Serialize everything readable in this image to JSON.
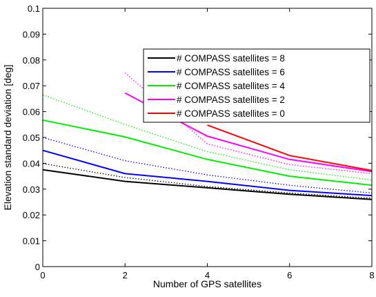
{
  "chart_data": {
    "type": "line",
    "title": "",
    "xlabel": "Number of GPS satellites",
    "ylabel": "Elevation standard deviation [deg]",
    "xlim": [
      0,
      8
    ],
    "ylim": [
      0,
      0.1
    ],
    "xticks": [
      "0",
      "2",
      "4",
      "6",
      "8"
    ],
    "yticks": [
      "0",
      "0.01",
      "0.02",
      "0.03",
      "0.04",
      "0.05",
      "0.06",
      "0.07",
      "0.08",
      "0.09",
      "0.1"
    ],
    "grid": false,
    "legend_position": "top-right",
    "series": [
      {
        "name": "# COMPASS satellites = 8",
        "color": "#000000",
        "solid": {
          "x": [
            0,
            2,
            4,
            6,
            8
          ],
          "y": [
            0.0375,
            0.033,
            0.0305,
            0.028,
            0.026
          ]
        },
        "dotted": {
          "x": [
            0,
            2,
            4,
            6,
            8
          ],
          "y": [
            0.0399,
            0.0345,
            0.031,
            0.0285,
            0.0265
          ]
        }
      },
      {
        "name": "# COMPASS satellites = 6",
        "color": "#0000ff",
        "solid": {
          "x": [
            0,
            2,
            4,
            6,
            8
          ],
          "y": [
            0.045,
            0.036,
            0.033,
            0.0295,
            0.0275
          ]
        },
        "dotted": {
          "x": [
            0,
            2,
            4,
            6,
            8
          ],
          "y": [
            0.05,
            0.041,
            0.0355,
            0.0315,
            0.0285
          ]
        }
      },
      {
        "name": "# COMPASS satellites = 4",
        "color": "#00ee00",
        "solid": {
          "x": [
            0,
            2,
            4,
            6,
            8
          ],
          "y": [
            0.0567,
            0.0502,
            0.0415,
            0.035,
            0.0315
          ]
        },
        "dotted": {
          "x": [
            0,
            2,
            4,
            6,
            8
          ],
          "y": [
            0.0665,
            0.055,
            0.0445,
            0.0375,
            0.0335
          ]
        }
      },
      {
        "name": "# COMPASS satellites = 2",
        "color": "#ff00ff",
        "solid": {
          "x": [
            2,
            4,
            6,
            8
          ],
          "y": [
            0.0672,
            0.0505,
            0.0415,
            0.0368
          ]
        },
        "dotted": {
          "x": [
            2,
            4,
            6,
            8
          ],
          "y": [
            0.075,
            0.0475,
            0.0395,
            0.036
          ]
        }
      },
      {
        "name": "# COMPASS satellites = 0",
        "color": "#ff0000",
        "solid": {
          "x": [
            4,
            6,
            8
          ],
          "y": [
            0.0548,
            0.043,
            0.0372
          ]
        },
        "dotted": {
          "x": [],
          "y": []
        }
      }
    ]
  }
}
